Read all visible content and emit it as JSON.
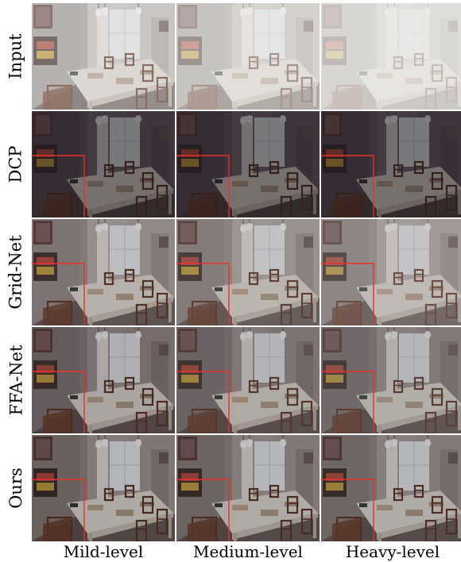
{
  "rows": [
    {
      "label": "Input",
      "tone": "input"
    },
    {
      "label": "DCP",
      "tone": "dcp"
    },
    {
      "label": "Grid-Net",
      "tone": "grid"
    },
    {
      "label": "FFA-Net",
      "tone": "ffa"
    },
    {
      "label": "Ours",
      "tone": "ours"
    }
  ],
  "columns": [
    "Mild-level",
    "Medium-level",
    "Heavy-level"
  ],
  "highlight_color": "#e8302a"
}
